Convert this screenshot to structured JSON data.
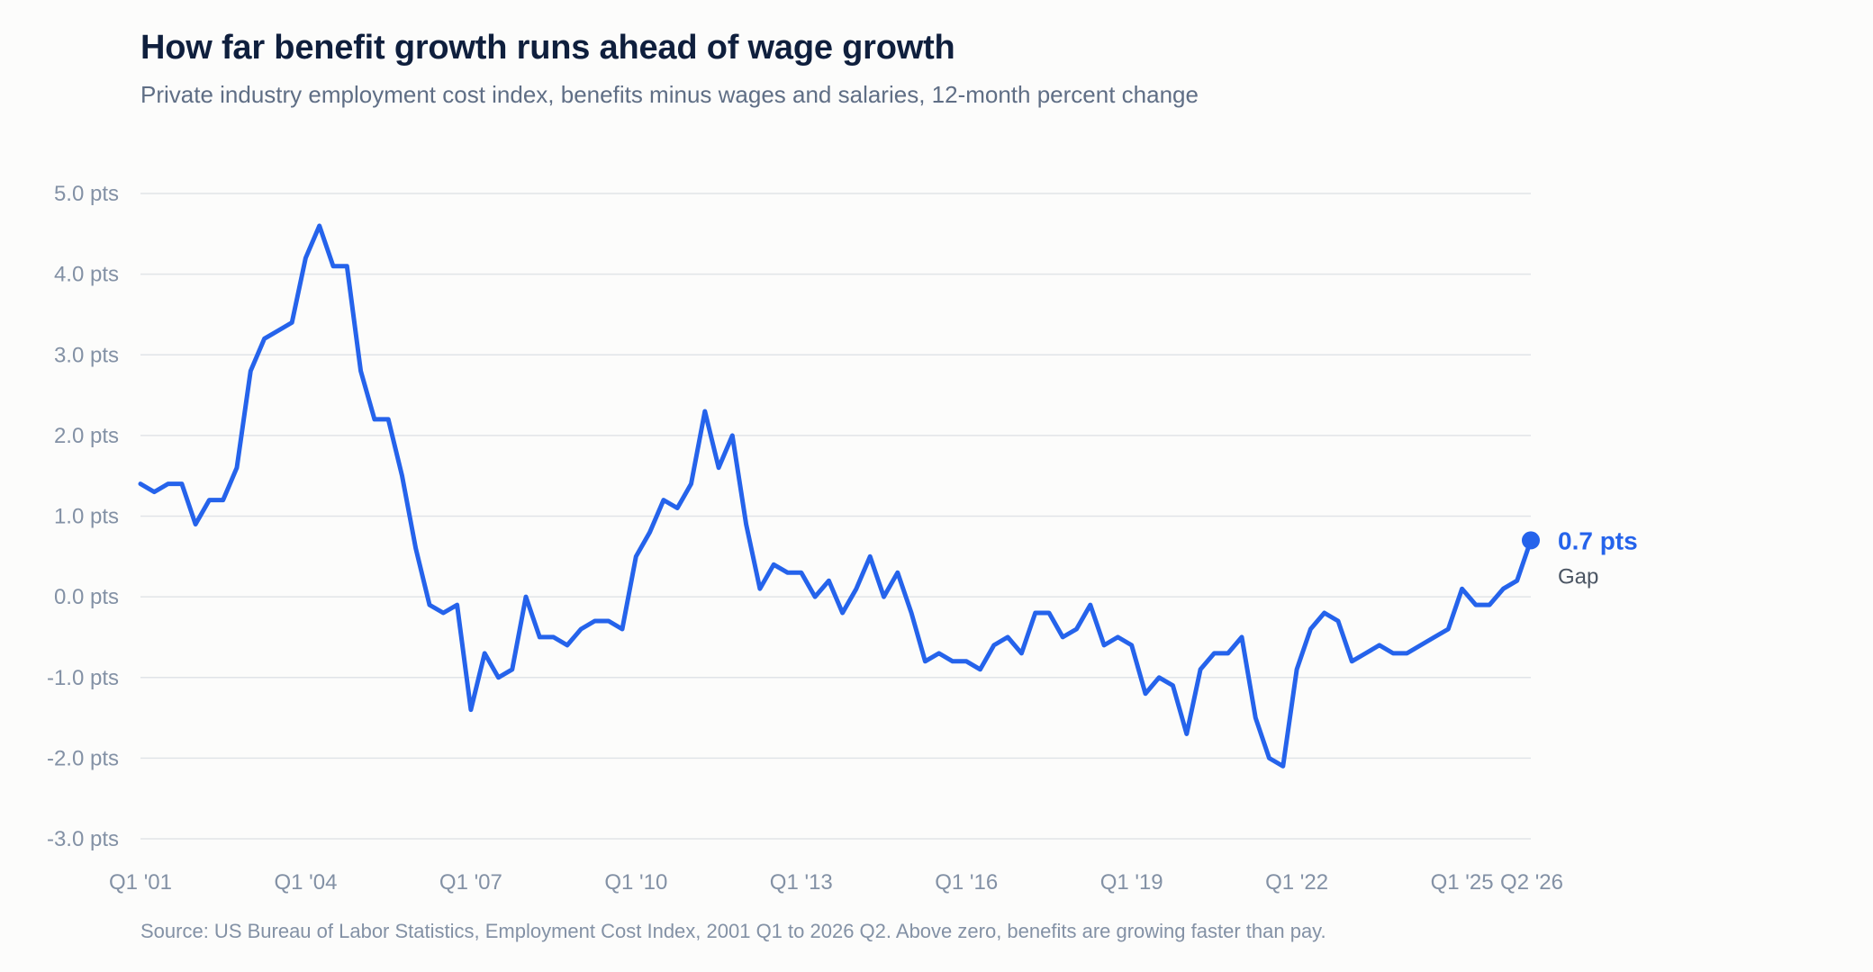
{
  "header": {
    "title": "How far benefit growth runs ahead of wage growth",
    "subtitle": "Private industry employment cost index, benefits minus wages and salaries, 12-month percent change"
  },
  "footer": {
    "source": "Source: US Bureau of Labor Statistics, Employment Cost Index, 2001 Q1 to 2026 Q2. Above zero, benefits are growing faster than pay."
  },
  "colors": {
    "line": "#2563eb",
    "grid": "#e1e4e8",
    "title": "#0f1f3d"
  },
  "chart_data": {
    "type": "line",
    "title": "How far benefit growth runs ahead of wage growth",
    "subtitle": "Private industry employment cost index, benefits minus wages and salaries, 12-month percent change",
    "xlabel": "",
    "ylabel": "",
    "ylim": [
      -3,
      5
    ],
    "grid": true,
    "y_ticks": [
      {
        "value": 5,
        "label": "5.0 pts"
      },
      {
        "value": 4,
        "label": "4.0 pts"
      },
      {
        "value": 3,
        "label": "3.0 pts"
      },
      {
        "value": 2,
        "label": "2.0 pts"
      },
      {
        "value": 1,
        "label": "1.0 pts"
      },
      {
        "value": 0,
        "label": "0.0 pts"
      },
      {
        "value": -1,
        "label": "-1.0 pts"
      },
      {
        "value": -2,
        "label": "-2.0 pts"
      },
      {
        "value": -3,
        "label": "-3.0 pts"
      }
    ],
    "x_ticks": [
      {
        "index": 0,
        "label": "Q1 '01"
      },
      {
        "index": 12,
        "label": "Q1 '04"
      },
      {
        "index": 24,
        "label": "Q1 '07"
      },
      {
        "index": 36,
        "label": "Q1 '10"
      },
      {
        "index": 48,
        "label": "Q1 '13"
      },
      {
        "index": 60,
        "label": "Q1 '16"
      },
      {
        "index": 72,
        "label": "Q1 '19"
      },
      {
        "index": 84,
        "label": "Q1 '22"
      },
      {
        "index": 96,
        "label": "Q1 '25"
      },
      {
        "index": 101,
        "label": "Q2 '26"
      }
    ],
    "series": [
      {
        "name": "Gap",
        "values": [
          1.4,
          1.3,
          1.4,
          1.4,
          0.9,
          1.2,
          1.2,
          1.6,
          2.8,
          3.2,
          3.3,
          3.4,
          4.2,
          4.6,
          4.1,
          4.1,
          2.8,
          2.2,
          2.2,
          1.5,
          0.6,
          -0.1,
          -0.2,
          -0.1,
          -1.4,
          -0.7,
          -1.0,
          -0.9,
          0.0,
          -0.5,
          -0.5,
          -0.6,
          -0.4,
          -0.3,
          -0.3,
          -0.4,
          0.5,
          0.8,
          1.2,
          1.1,
          1.4,
          2.3,
          1.6,
          2.0,
          0.9,
          0.1,
          0.4,
          0.3,
          0.3,
          0.0,
          0.2,
          -0.2,
          0.1,
          0.5,
          0.0,
          0.3,
          -0.2,
          -0.8,
          -0.7,
          -0.8,
          -0.8,
          -0.9,
          -0.6,
          -0.5,
          -0.7,
          -0.2,
          -0.2,
          -0.5,
          -0.4,
          -0.1,
          -0.6,
          -0.5,
          -0.6,
          -1.2,
          -1.0,
          -1.1,
          -1.7,
          -0.9,
          -0.7,
          -0.7,
          -0.5,
          -1.5,
          -2.0,
          -2.1,
          -0.9,
          -0.4,
          -0.2,
          -0.3,
          -0.8,
          -0.7,
          -0.6,
          -0.7,
          -0.7,
          -0.6,
          -0.5,
          -0.4,
          0.1,
          -0.1,
          -0.1,
          0.1,
          0.2,
          0.7
        ]
      }
    ],
    "end_annotation": {
      "value_label": "0.7 pts",
      "series_label": "Gap"
    }
  }
}
